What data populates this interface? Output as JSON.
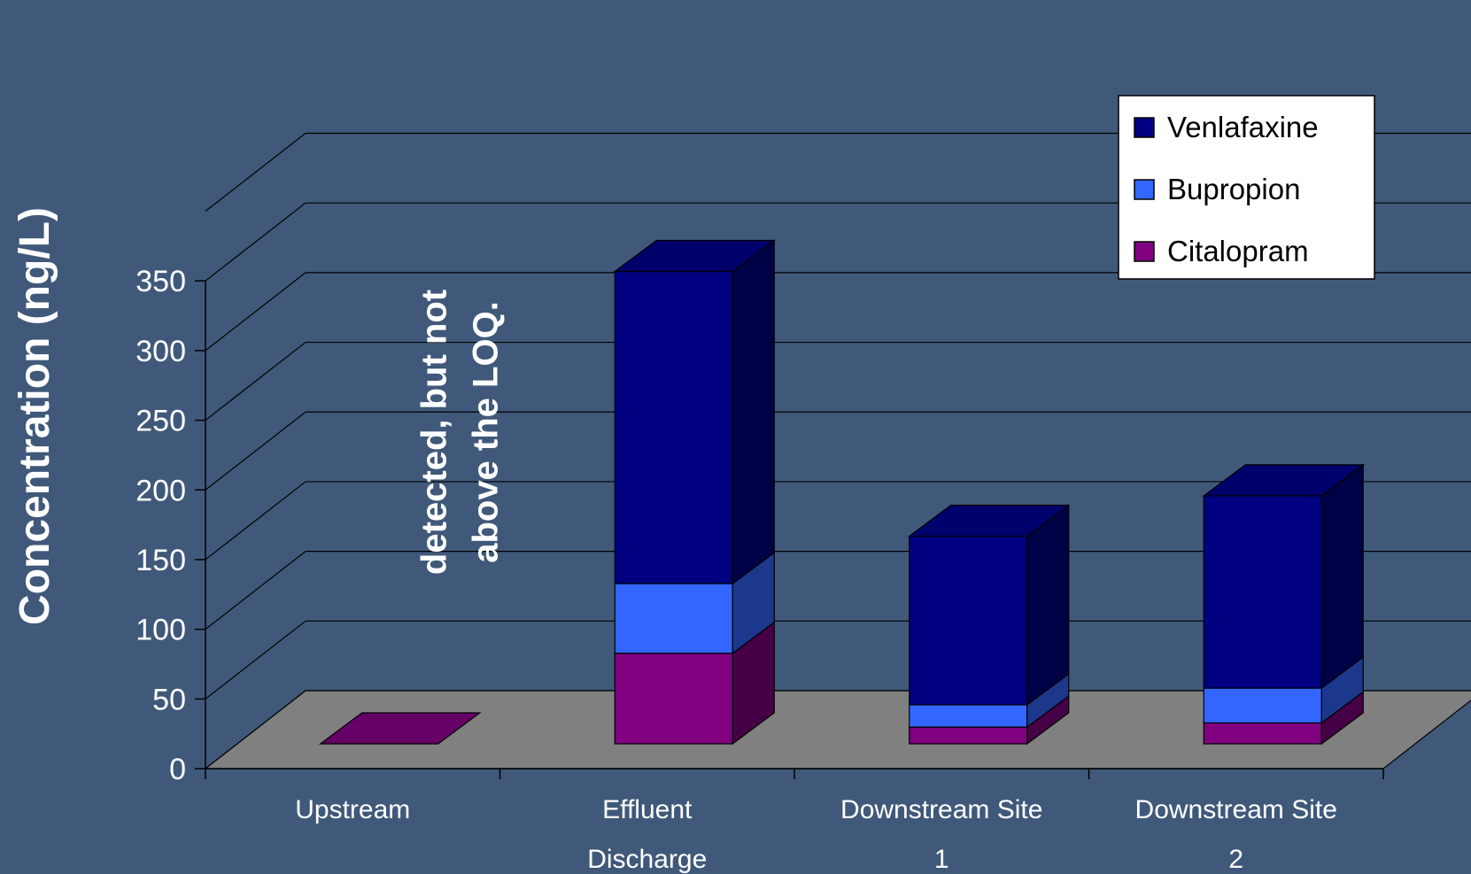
{
  "chart_data": {
    "type": "bar",
    "stacked": true,
    "three_d": true,
    "ylabel": "Concentration (ng/L)",
    "xlabel": "",
    "ylim": [
      0,
      350
    ],
    "ytick_step": 50,
    "grid": true,
    "legend_position": "top-right",
    "categories": [
      [
        "Upstream"
      ],
      [
        "Effluent",
        "Discharge"
      ],
      [
        "Downstream Site",
        "1"
      ],
      [
        "Downstream Site",
        "2"
      ]
    ],
    "series": [
      {
        "name": "Citalopram",
        "color": "#800080",
        "values": [
          0,
          65,
          12,
          15
        ]
      },
      {
        "name": "Bupropion",
        "color": "#3366ff",
        "values": [
          0,
          50,
          16,
          25
        ]
      },
      {
        "name": "Venlafaxine",
        "color": "#000080",
        "values": [
          0,
          224,
          121,
          138
        ]
      }
    ],
    "annotation": {
      "lines": [
        "detected, but not",
        "above the LOQ."
      ],
      "category_index": 0
    }
  }
}
